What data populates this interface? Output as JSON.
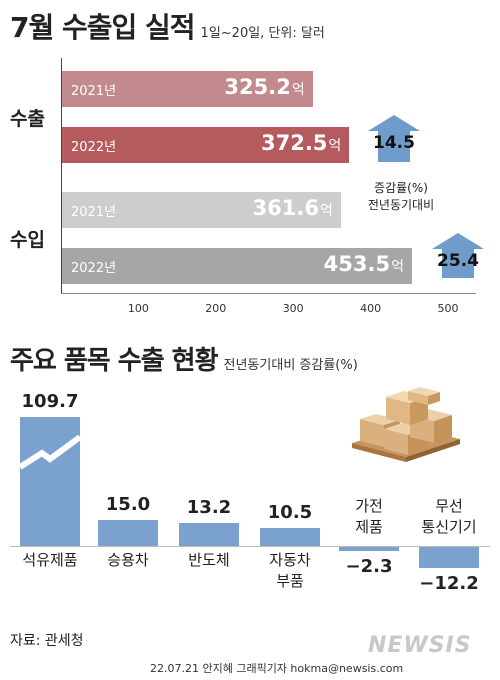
{
  "title": "7월 수출입 실적",
  "title_note": "1일~20일, 단위: 달러",
  "subtitle": "주요 품목 수출 현황",
  "subtitle_note": "전년동기대비 증감률(%)",
  "source": "자료: 관세청",
  "credit": "22.07.21 안지혜 그래픽기자 hokma@newsis.com",
  "logo": "NEWSIS",
  "rate_caption_line1": "증감률(%)",
  "rate_caption_line2": "전년동기대비",
  "colors": {
    "export_2021": "#c28a8c",
    "export_2022": "#b55b5e",
    "import_2021": "#cdcdcd",
    "import_2022": "#a6a6a6",
    "arrow": "#6f9ccb",
    "bar_blue": "#7ba2cf"
  },
  "chart_data": [
    {
      "type": "bar",
      "orientation": "horizontal",
      "unit": "억",
      "x_ticks": [
        100,
        200,
        300,
        400,
        500
      ],
      "xlim": [
        0,
        560
      ],
      "groups": [
        {
          "label": "수출",
          "bars": [
            {
              "year": "2021년",
              "value": 325.2,
              "label": "325.2"
            },
            {
              "year": "2022년",
              "value": 372.5,
              "label": "372.5"
            }
          ],
          "change_rate": "14.5"
        },
        {
          "label": "수입",
          "bars": [
            {
              "year": "2021년",
              "value": 361.6,
              "label": "361.6"
            },
            {
              "year": "2022년",
              "value": 453.5,
              "label": "453.5"
            }
          ],
          "change_rate": "25.4"
        }
      ]
    },
    {
      "type": "bar",
      "orientation": "vertical",
      "axis_break": true,
      "categories": [
        {
          "lines": [
            "석유제품"
          ],
          "value": 109.7,
          "label": "109.7"
        },
        {
          "lines": [
            "승용차"
          ],
          "value": 15.0,
          "label": "15.0"
        },
        {
          "lines": [
            "반도체"
          ],
          "value": 13.2,
          "label": "13.2"
        },
        {
          "lines": [
            "자동차",
            "부품"
          ],
          "value": 10.5,
          "label": "10.5"
        },
        {
          "lines": [
            "가전",
            "제품"
          ],
          "value": -2.3,
          "label": "−2.3"
        },
        {
          "lines": [
            "무선",
            "통신기기"
          ],
          "value": -12.2,
          "label": "−12.2"
        }
      ]
    }
  ]
}
